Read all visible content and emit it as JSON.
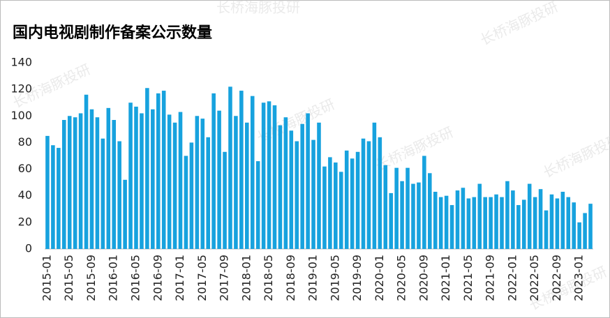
{
  "chart_data": {
    "type": "bar",
    "title": "国内电视剧制作备案公示数量",
    "watermark": "长桥海豚投研",
    "categories": [
      "2015-01",
      null,
      null,
      null,
      "2015-05",
      null,
      null,
      null,
      "2015-09",
      null,
      null,
      null,
      "2016-01",
      null,
      null,
      null,
      "2016-05",
      null,
      null,
      null,
      "2016-09",
      null,
      null,
      null,
      "2017-01",
      null,
      null,
      null,
      "2017-05",
      null,
      null,
      null,
      "2017-09",
      null,
      null,
      null,
      "2018-01",
      null,
      null,
      null,
      "2018-05",
      null,
      null,
      null,
      "2018-09",
      null,
      null,
      null,
      "2019-01",
      null,
      null,
      null,
      "2019-05",
      null,
      null,
      null,
      "2019-09",
      null,
      null,
      null,
      "2020-01",
      null,
      null,
      null,
      "2020-05",
      null,
      null,
      null,
      "2020-09",
      null,
      null,
      null,
      "2021-01",
      null,
      null,
      null,
      "2021-05",
      null,
      null,
      null,
      "2021-09",
      null,
      null,
      null,
      "2022-01",
      null,
      null,
      null,
      "2022-05",
      null,
      null,
      null,
      "2022-09",
      null,
      null,
      null,
      "2023-01",
      null,
      null
    ],
    "values": [
      85,
      78,
      76,
      97,
      100,
      99,
      102,
      116,
      105,
      99,
      83,
      106,
      97,
      81,
      52,
      110,
      107,
      102,
      121,
      105,
      117,
      119,
      101,
      95,
      103,
      70,
      80,
      100,
      98,
      84,
      117,
      104,
      73,
      122,
      100,
      119,
      95,
      115,
      66,
      110,
      111,
      108,
      93,
      99,
      89,
      81,
      94,
      102,
      82,
      95,
      62,
      69,
      65,
      58,
      74,
      68,
      73,
      83,
      81,
      95,
      84,
      63,
      42,
      61,
      51,
      61,
      49,
      50,
      70,
      57,
      43,
      39,
      40,
      33,
      44,
      46,
      38,
      39,
      49,
      39,
      39,
      41,
      39,
      51,
      44,
      33,
      37,
      49,
      39,
      45,
      29,
      41,
      38,
      43,
      39,
      35,
      20,
      27,
      34
    ],
    "color": "#17a2de",
    "ylim": [
      0,
      140
    ],
    "yticks": [
      0,
      20,
      40,
      60,
      80,
      100,
      120,
      140
    ],
    "grid": false
  }
}
